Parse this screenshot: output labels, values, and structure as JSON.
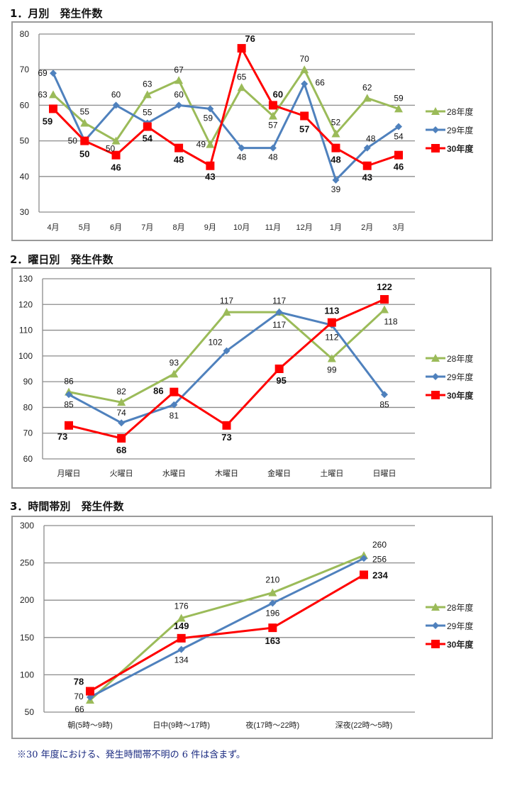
{
  "series_styles": [
    {
      "name": "28年度",
      "color": "#9bbb59",
      "marker": "triangle"
    },
    {
      "name": "29年度",
      "color": "#4f81bd",
      "marker": "diamond"
    },
    {
      "name": "30年度",
      "color": "#ff0000",
      "marker": "square"
    }
  ],
  "chart_data": [
    {
      "type": "line",
      "title": "1．月別　発生件数",
      "categories": [
        "4月",
        "5月",
        "6月",
        "7月",
        "8月",
        "9月",
        "10月",
        "11月",
        "12月",
        "1月",
        "2月",
        "3月"
      ],
      "ylim": [
        30,
        80
      ],
      "yticks": [
        30,
        40,
        50,
        60,
        70,
        80
      ],
      "grid": true,
      "legend": "right",
      "series": [
        {
          "name": "28年度",
          "values": [
            63,
            55,
            50,
            63,
            67,
            49,
            65,
            57,
            70,
            52,
            62,
            59
          ]
        },
        {
          "name": "29年度",
          "values": [
            69,
            50,
            60,
            55,
            60,
            59,
            48,
            48,
            66,
            39,
            48,
            54
          ]
        },
        {
          "name": "30年度",
          "values": [
            59,
            50,
            46,
            54,
            48,
            43,
            76,
            60,
            57,
            48,
            43,
            46
          ]
        }
      ]
    },
    {
      "type": "line",
      "title": "2．曜日別　発生件数",
      "categories": [
        "月曜日",
        "火曜日",
        "水曜日",
        "木曜日",
        "金曜日",
        "土曜日",
        "日曜日"
      ],
      "ylim": [
        60,
        130
      ],
      "yticks": [
        60,
        70,
        80,
        90,
        100,
        110,
        120,
        130
      ],
      "grid": false,
      "legend": "right",
      "series": [
        {
          "name": "28年度",
          "values": [
            86,
            82,
            93,
            117,
            117,
            99,
            118
          ]
        },
        {
          "name": "29年度",
          "values": [
            85,
            74,
            81,
            102,
            117,
            112,
            85
          ]
        },
        {
          "name": "30年度",
          "values": [
            73,
            68,
            86,
            73,
            95,
            113,
            122
          ]
        }
      ]
    },
    {
      "type": "line",
      "title": "3．時間帯別　発生件数",
      "categories": [
        "朝(5時～9時)",
        "日中(9時～17時)",
        "夜(17時～22時)",
        "深夜(22時～5時)"
      ],
      "ylim": [
        50,
        300
      ],
      "yticks": [
        50,
        100,
        150,
        200,
        250,
        300
      ],
      "grid": true,
      "legend": "right",
      "series": [
        {
          "name": "28年度",
          "values": [
            66,
            176,
            210,
            260
          ]
        },
        {
          "name": "29年度",
          "values": [
            70,
            134,
            196,
            256
          ]
        },
        {
          "name": "30年度",
          "values": [
            78,
            149,
            163,
            234
          ]
        }
      ]
    }
  ],
  "note": "※30 年度における、発生時間帯不明の 6 件は含まず。"
}
